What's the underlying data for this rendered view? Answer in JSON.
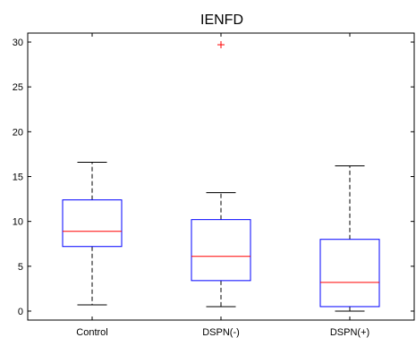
{
  "chart_data": {
    "type": "box",
    "title": "IENFD",
    "xlabel": "",
    "ylabel": "",
    "ylim": [
      -1,
      31
    ],
    "yticks": [
      0,
      5,
      10,
      15,
      20,
      25,
      30
    ],
    "categories": [
      "Control",
      "DSPN(-)",
      "DSPN(+)"
    ],
    "boxes": [
      {
        "category": "Control",
        "whisker_low": 0.7,
        "q1": 7.2,
        "median": 8.9,
        "q3": 12.4,
        "whisker_high": 16.6,
        "outliers": []
      },
      {
        "category": "DSPN(-)",
        "whisker_low": 0.5,
        "q1": 3.4,
        "median": 6.1,
        "q3": 10.2,
        "whisker_high": 13.2,
        "outliers": [
          29.7
        ]
      },
      {
        "category": "DSPN(+)",
        "whisker_low": 0.0,
        "q1": 0.5,
        "median": 3.2,
        "q3": 8.0,
        "whisker_high": 16.2,
        "outliers": []
      }
    ],
    "grid": false,
    "colors": {
      "box": "#0000ff",
      "median": "#ff0000",
      "whisker": "#000000",
      "outlier": "#ff0000",
      "axis": "#000000"
    }
  }
}
